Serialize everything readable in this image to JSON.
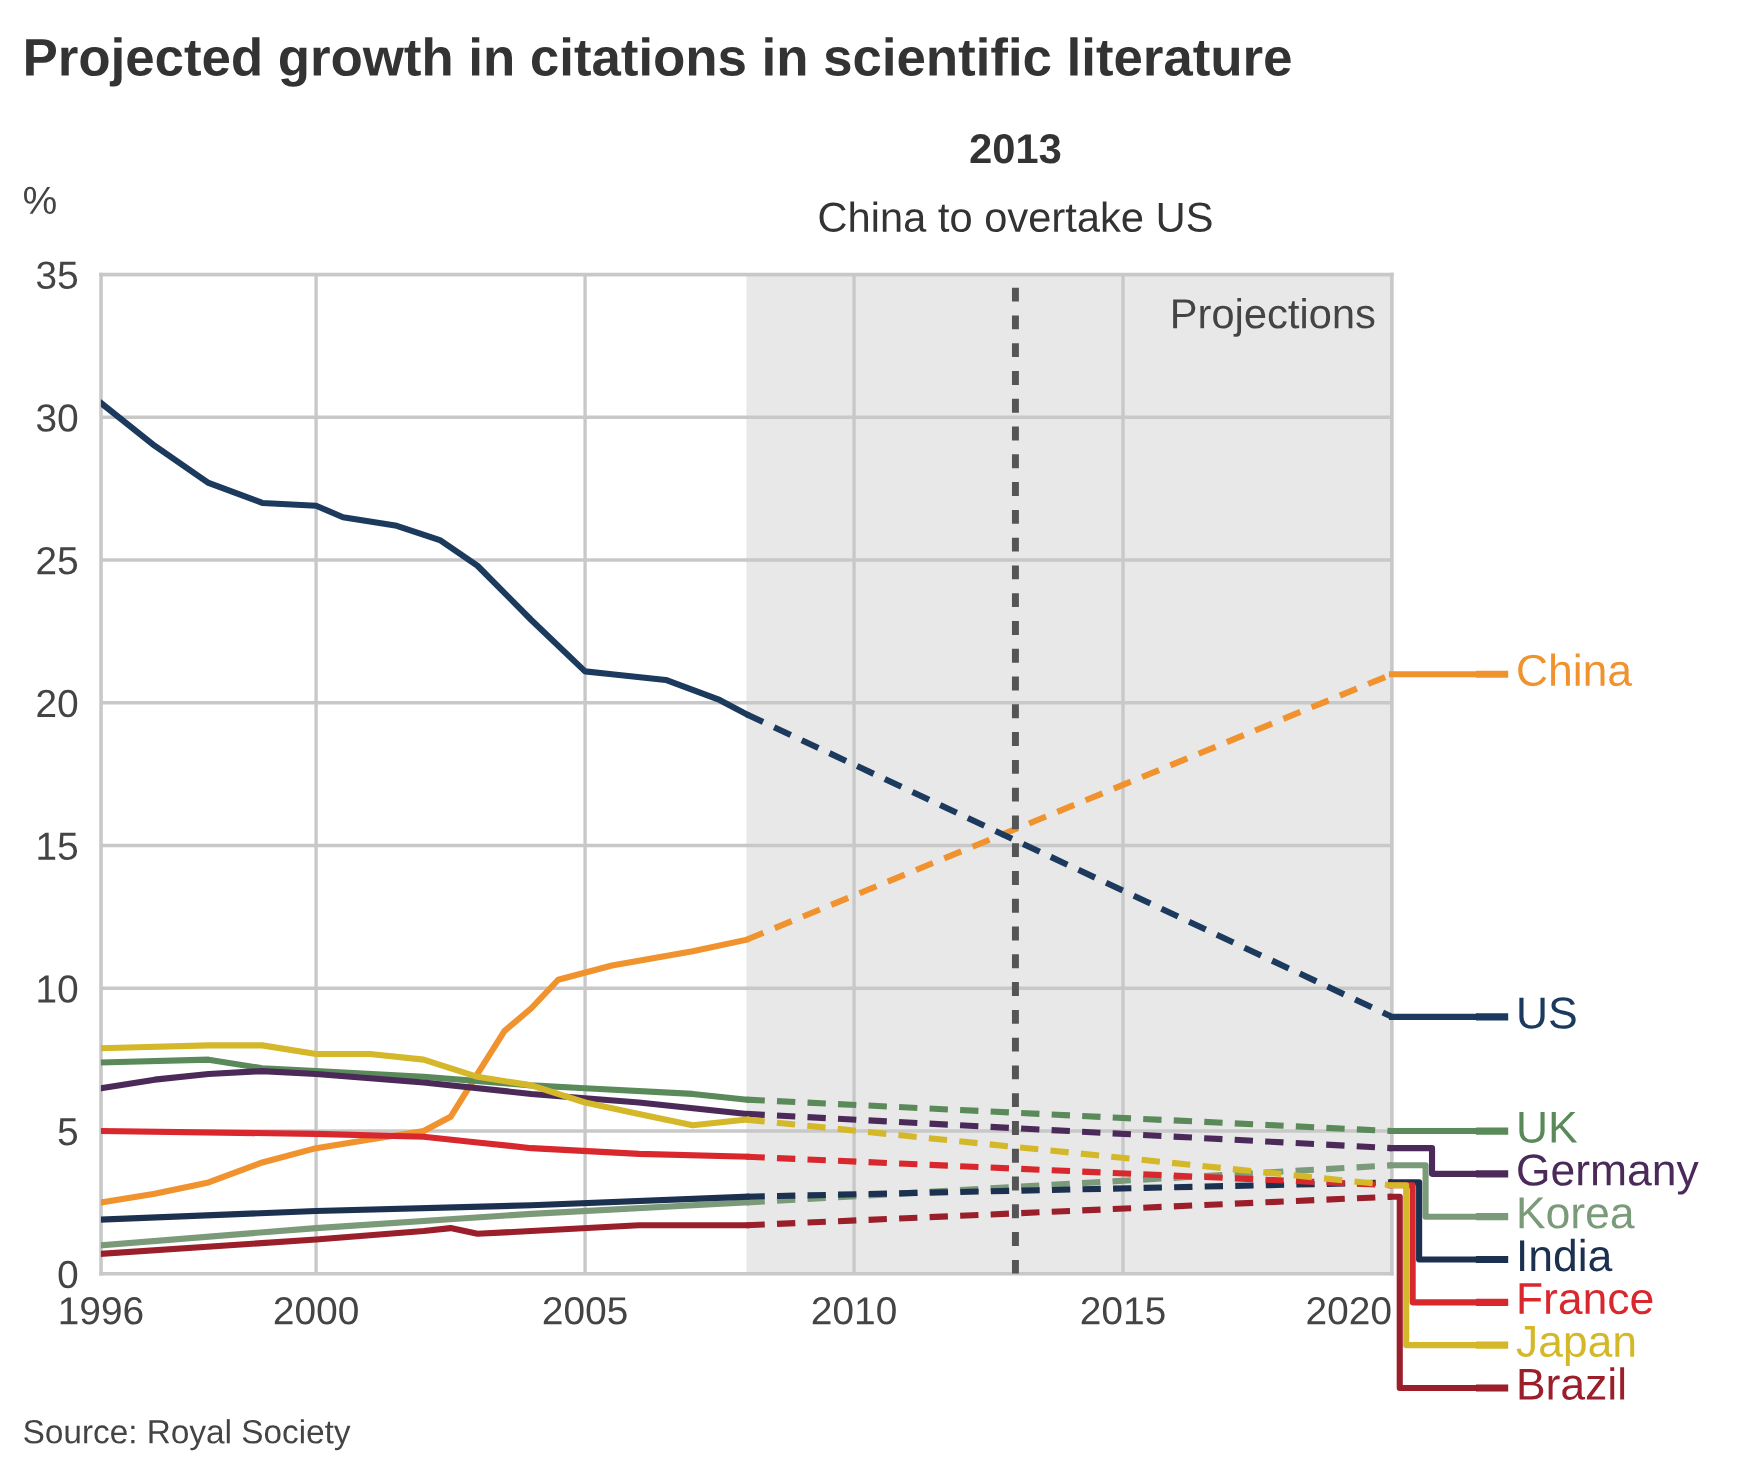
{
  "chart_data": {
    "type": "line",
    "title": "Projected growth in citations in scientific literature",
    "ylabel": "%",
    "xlim": [
      1996,
      2020
    ],
    "xticks": [
      1996,
      2000,
      2005,
      2010,
      2015,
      2020
    ],
    "ylim": [
      0,
      35
    ],
    "yticks": [
      0,
      5,
      10,
      15,
      20,
      25,
      30,
      35
    ],
    "grid": true,
    "legend": "right",
    "marker": "none",
    "ref_lines": [
      {
        "axis": "x",
        "value": 2013,
        "label": "2013\nChina to overtake US",
        "color": "#555555",
        "line_style": "dotted"
      }
    ],
    "bands": [
      {
        "axis": "x",
        "from": 2008,
        "to": 2020,
        "label": "Projections",
        "color": "#e8e8e8"
      }
    ],
    "annotations": [
      "Source: Royal Society"
    ],
    "series": [
      {
        "name": "China",
        "color": "#f0922e",
        "line_style": "solid",
        "x": [
          1996,
          1997,
          1998,
          1999,
          2000,
          2001,
          2002,
          2002.5,
          2003,
          2003.5,
          2004,
          2004.5,
          2005.5,
          2007,
          2008
        ],
        "values": [
          2.5,
          2.8,
          3.2,
          3.9,
          4.4,
          4.7,
          5.0,
          5.5,
          7.0,
          8.5,
          9.3,
          10.3,
          10.8,
          11.3,
          11.7
        ]
      },
      {
        "color": "#f0922e",
        "line_style": "dashed",
        "x": [
          2008,
          2020
        ],
        "values": [
          11.7,
          21.0
        ]
      },
      {
        "name": "US",
        "color": "#1c3a5e",
        "line_style": "solid",
        "x": [
          1996,
          1997,
          1998,
          1999,
          2000,
          2000.5,
          2001.5,
          2002.3,
          2003,
          2004,
          2005,
          2005.5,
          2006.5,
          2007.5,
          2008
        ],
        "values": [
          30.5,
          29.0,
          27.7,
          27.0,
          26.9,
          26.5,
          26.2,
          25.7,
          24.8,
          22.9,
          21.1,
          21.0,
          20.8,
          20.1,
          19.6
        ]
      },
      {
        "color": "#1c3a5e",
        "line_style": "dashed",
        "x": [
          2008,
          2020
        ],
        "values": [
          19.6,
          9.0
        ]
      },
      {
        "name": "UK",
        "color": "#5a8a5a",
        "line_style": "solid",
        "x": [
          1996,
          1998,
          1999,
          2000,
          2002,
          2004,
          2005,
          2007,
          2008
        ],
        "values": [
          7.4,
          7.5,
          7.2,
          7.1,
          6.9,
          6.6,
          6.5,
          6.3,
          6.1
        ]
      },
      {
        "color": "#5a8a5a",
        "line_style": "dashed",
        "x": [
          2008,
          2020
        ],
        "values": [
          6.1,
          5.0
        ]
      },
      {
        "name": "Germany",
        "color": "#4b2a5a",
        "line_style": "solid",
        "x": [
          1996,
          1997,
          1998,
          1999,
          2000,
          2002,
          2004,
          2006,
          2008
        ],
        "values": [
          6.5,
          6.8,
          7.0,
          7.1,
          7.0,
          6.7,
          6.3,
          6.0,
          5.6
        ]
      },
      {
        "color": "#4b2a5a",
        "line_style": "dashed",
        "x": [
          2008,
          2020
        ],
        "values": [
          5.6,
          4.4
        ]
      },
      {
        "name": "Korea",
        "color": "#7a9a7a",
        "line_style": "solid",
        "x": [
          1996,
          2000,
          2004,
          2008
        ],
        "values": [
          1.0,
          1.6,
          2.1,
          2.5
        ]
      },
      {
        "color": "#7a9a7a",
        "line_style": "dashed",
        "x": [
          2008,
          2020
        ],
        "values": [
          2.5,
          3.8
        ]
      },
      {
        "name": "India",
        "color": "#1c3050",
        "line_style": "solid",
        "x": [
          1996,
          2000,
          2004,
          2008
        ],
        "values": [
          1.9,
          2.2,
          2.4,
          2.7
        ]
      },
      {
        "color": "#1c3050",
        "line_style": "dashed",
        "x": [
          2008,
          2020
        ],
        "values": [
          2.7,
          3.2
        ]
      },
      {
        "name": "France",
        "color": "#d8282e",
        "line_style": "solid",
        "x": [
          1996,
          2000,
          2002,
          2003,
          2004,
          2006,
          2008
        ],
        "values": [
          5.0,
          4.9,
          4.8,
          4.6,
          4.4,
          4.2,
          4.1
        ]
      },
      {
        "color": "#d8282e",
        "line_style": "dashed",
        "x": [
          2008,
          2020
        ],
        "values": [
          4.1,
          3.1
        ]
      },
      {
        "name": "Japan",
        "color": "#d4b82a",
        "line_style": "solid",
        "x": [
          1996,
          1998,
          1999,
          2000,
          2001,
          2002,
          2003,
          2004,
          2005,
          2006,
          2007,
          2008
        ],
        "values": [
          7.9,
          8.0,
          8.0,
          7.7,
          7.7,
          7.5,
          6.9,
          6.6,
          6.0,
          5.6,
          5.2,
          5.4
        ]
      },
      {
        "color": "#d4b82a",
        "line_style": "dashed",
        "x": [
          2008,
          2020
        ],
        "values": [
          5.4,
          3.1
        ]
      },
      {
        "name": "Brazil",
        "color": "#9a1f2a",
        "line_style": "solid",
        "x": [
          1996,
          2000,
          2002,
          2002.5,
          2003,
          2004,
          2006,
          2008
        ],
        "values": [
          0.7,
          1.2,
          1.5,
          1.6,
          1.4,
          1.5,
          1.7,
          1.7
        ]
      },
      {
        "color": "#9a1f2a",
        "line_style": "dashed",
        "x": [
          2008,
          2020
        ],
        "values": [
          1.7,
          2.7
        ]
      }
    ]
  }
}
